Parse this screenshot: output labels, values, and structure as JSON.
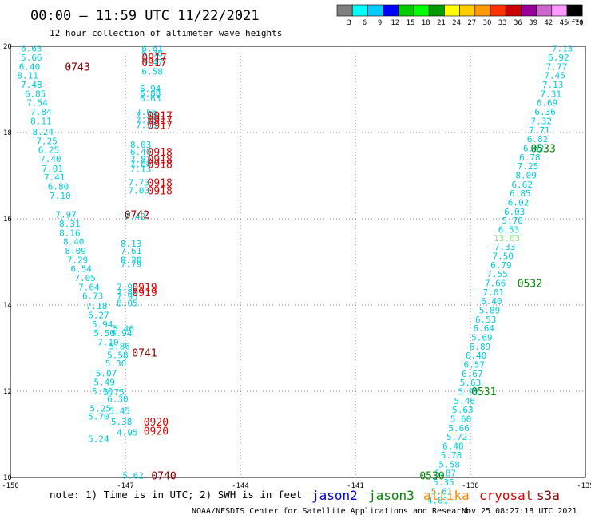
{
  "header": {
    "title": "00:00 – 11:59 UTC 11/22/2021",
    "subtitle": "12 hour collection of altimeter wave heights",
    "note": "note: 1) Time is in UTC; 2) SWH is in feet",
    "credit": "NOAA/NESDIS Center for Satellite Applications and Research",
    "timestamp": "Nov 25 08:27:18 UTC 2021"
  },
  "legend": {
    "colors": [
      "#808080",
      "#00ffff",
      "#00ccff",
      "#0000ff",
      "#00cc00",
      "#00ff00",
      "#009900",
      "#ffff00",
      "#ffcc00",
      "#ff9900",
      "#ff3300",
      "#cc0000",
      "#990099",
      "#cc66cc",
      "#ff99ff",
      "#000000"
    ],
    "labels": [
      "3",
      "6",
      "9",
      "12",
      "15",
      "18",
      "21",
      "24",
      "27",
      "30",
      "33",
      "36",
      "39",
      "42",
      "45",
      "70"
    ],
    "unit": "(ft)"
  },
  "missions": [
    {
      "name": "jason2",
      "color": "#0000dd"
    },
    {
      "name": "jason3",
      "color": "#008800"
    },
    {
      "name": "altika",
      "color": "#ff8800"
    },
    {
      "name": "cryosat",
      "color": "#dd0000"
    },
    {
      "name": "s3a",
      "color": "#880000"
    }
  ],
  "chart_data": {
    "type": "scatter",
    "title": "00:00 – 11:59 UTC 11/22/2021",
    "xlim": [
      -150,
      -135
    ],
    "ylim": [
      10,
      20
    ],
    "xticks": [
      "-150",
      "-147",
      "-144",
      "-141",
      "-138",
      "-135"
    ],
    "yticks": [
      "10",
      "12",
      "14",
      "16",
      "18",
      "20"
    ],
    "colors": {
      "swh": "#00ccdd",
      "swh_light": "#88ee88",
      "swh_yellow": "#ffff00",
      "jason3": "#008800",
      "cryosat": "#dd0000",
      "s3a": "#880000"
    },
    "points": [
      {
        "x": -149.45,
        "y": 19.95,
        "v": "6.63"
      },
      {
        "x": -149.45,
        "y": 19.74,
        "v": "5.66"
      },
      {
        "x": -149.5,
        "y": 19.53,
        "v": "6.40"
      },
      {
        "x": -149.55,
        "y": 19.32,
        "v": "8.11"
      },
      {
        "x": -149.45,
        "y": 19.11,
        "v": "7.48"
      },
      {
        "x": -149.35,
        "y": 18.9,
        "v": "6.85"
      },
      {
        "x": -149.3,
        "y": 18.69,
        "v": "7.54"
      },
      {
        "x": -149.2,
        "y": 18.48,
        "v": "7.84"
      },
      {
        "x": -149.2,
        "y": 18.27,
        "v": "8.11"
      },
      {
        "x": -149.15,
        "y": 18.02,
        "v": "8.24"
      },
      {
        "x": -149.05,
        "y": 17.81,
        "v": "7.25"
      },
      {
        "x": -149.0,
        "y": 17.6,
        "v": "6.25"
      },
      {
        "x": -148.95,
        "y": 17.39,
        "v": "7.40"
      },
      {
        "x": -148.9,
        "y": 17.17,
        "v": "7.01"
      },
      {
        "x": -148.85,
        "y": 16.96,
        "v": "7.41"
      },
      {
        "x": -148.75,
        "y": 16.75,
        "v": "6.80"
      },
      {
        "x": -148.7,
        "y": 16.54,
        "v": "7.10"
      },
      {
        "x": -148.55,
        "y": 16.1,
        "v": "7.97"
      },
      {
        "x": -148.45,
        "y": 15.89,
        "v": "8.31"
      },
      {
        "x": -148.45,
        "y": 15.68,
        "v": "8.16"
      },
      {
        "x": -148.35,
        "y": 15.47,
        "v": "8.40"
      },
      {
        "x": -148.3,
        "y": 15.26,
        "v": "8.09"
      },
      {
        "x": -148.25,
        "y": 15.05,
        "v": "7.29"
      },
      {
        "x": -148.15,
        "y": 14.84,
        "v": "6.54"
      },
      {
        "x": -148.05,
        "y": 14.63,
        "v": "7.05"
      },
      {
        "x": -147.95,
        "y": 14.42,
        "v": "7.64"
      },
      {
        "x": -147.85,
        "y": 14.21,
        "v": "6.73"
      },
      {
        "x": -147.75,
        "y": 13.98,
        "v": "7.18"
      },
      {
        "x": -147.7,
        "y": 13.77,
        "v": "6.27"
      },
      {
        "x": -147.6,
        "y": 13.56,
        "v": "5.94"
      },
      {
        "x": -147.55,
        "y": 13.35,
        "v": "5.50"
      },
      {
        "x": -147.45,
        "y": 13.14,
        "v": "7.10"
      },
      {
        "x": -147.5,
        "y": 12.42,
        "v": "5.07"
      },
      {
        "x": -147.55,
        "y": 12.21,
        "v": "5.49"
      },
      {
        "x": -147.6,
        "y": 12.0,
        "v": "5.10"
      },
      {
        "x": -147.65,
        "y": 11.6,
        "v": "5.25"
      },
      {
        "x": -147.7,
        "y": 11.42,
        "v": "5.70"
      },
      {
        "x": -147.7,
        "y": 10.9,
        "v": "5.24"
      },
      {
        "x": -146.3,
        "y": 19.95,
        "v": "6.61"
      },
      {
        "x": -146.3,
        "y": 19.84,
        "v": "6.38"
      },
      {
        "x": -146.3,
        "y": 19.63,
        "v": "6.47"
      },
      {
        "x": -146.3,
        "y": 19.42,
        "v": "6.58"
      },
      {
        "x": -146.35,
        "y": 19.02,
        "v": "6.94"
      },
      {
        "x": -146.35,
        "y": 18.91,
        "v": "6.88"
      },
      {
        "x": -146.35,
        "y": 18.8,
        "v": "6.63"
      },
      {
        "x": -146.45,
        "y": 18.48,
        "v": "7.66"
      },
      {
        "x": -146.45,
        "y": 18.4,
        "v": "7.59"
      },
      {
        "x": -146.45,
        "y": 18.3,
        "v": "7.78"
      },
      {
        "x": -146.45,
        "y": 18.18,
        "v": "7.55"
      },
      {
        "x": -146.6,
        "y": 17.72,
        "v": "8.03"
      },
      {
        "x": -146.6,
        "y": 17.56,
        "v": "6.40"
      },
      {
        "x": -146.6,
        "y": 17.38,
        "v": "7.82"
      },
      {
        "x": -146.6,
        "y": 17.27,
        "v": "7.84"
      },
      {
        "x": -146.6,
        "y": 17.16,
        "v": "7.13"
      },
      {
        "x": -146.65,
        "y": 16.84,
        "v": "7.73"
      },
      {
        "x": -146.65,
        "y": 16.66,
        "v": "7.03"
      },
      {
        "x": -146.75,
        "y": 16.06,
        "v": "7.42"
      },
      {
        "x": -146.85,
        "y": 15.43,
        "v": "8.13"
      },
      {
        "x": -146.85,
        "y": 15.26,
        "v": "7.61"
      },
      {
        "x": -146.85,
        "y": 15.05,
        "v": "8.20"
      },
      {
        "x": -146.85,
        "y": 14.95,
        "v": "7.79"
      },
      {
        "x": -146.95,
        "y": 14.42,
        "v": "7.98"
      },
      {
        "x": -146.95,
        "y": 14.3,
        "v": "7.89"
      },
      {
        "x": -146.95,
        "y": 14.2,
        "v": "7.95"
      },
      {
        "x": -146.95,
        "y": 14.05,
        "v": "8.05"
      },
      {
        "x": -147.05,
        "y": 13.45,
        "v": "5.46"
      },
      {
        "x": -147.1,
        "y": 13.35,
        "v": "5.94"
      },
      {
        "x": -147.15,
        "y": 13.05,
        "v": "5.86"
      },
      {
        "x": -147.2,
        "y": 12.84,
        "v": "5.58"
      },
      {
        "x": -147.25,
        "y": 12.65,
        "v": "5.30"
      },
      {
        "x": -147.3,
        "y": 11.98,
        "v": "5.75"
      },
      {
        "x": -147.2,
        "y": 11.82,
        "v": "6.30"
      },
      {
        "x": -147.15,
        "y": 11.55,
        "v": "5.45"
      },
      {
        "x": -147.1,
        "y": 11.3,
        "v": "5.38"
      },
      {
        "x": -146.95,
        "y": 11.05,
        "v": "4.95"
      },
      {
        "x": -146.8,
        "y": 10.05,
        "v": "5.62"
      },
      {
        "x": -135.6,
        "y": 19.95,
        "v": "7.13"
      },
      {
        "x": -135.7,
        "y": 19.74,
        "v": "6.92"
      },
      {
        "x": -135.75,
        "y": 19.53,
        "v": "7.77"
      },
      {
        "x": -135.8,
        "y": 19.32,
        "v": "7.45"
      },
      {
        "x": -135.85,
        "y": 19.11,
        "v": "7.13"
      },
      {
        "x": -135.9,
        "y": 18.9,
        "v": "7.31"
      },
      {
        "x": -136.0,
        "y": 18.69,
        "v": "6.69"
      },
      {
        "x": -136.05,
        "y": 18.48,
        "v": "6.36"
      },
      {
        "x": -136.15,
        "y": 18.27,
        "v": "7.32"
      },
      {
        "x": -136.2,
        "y": 18.06,
        "v": "7.71"
      },
      {
        "x": -136.25,
        "y": 17.85,
        "v": "6.82"
      },
      {
        "x": -136.35,
        "y": 17.64,
        "v": "6.62"
      },
      {
        "x": -136.45,
        "y": 17.43,
        "v": "6.78"
      },
      {
        "x": -136.5,
        "y": 17.22,
        "v": "7.25"
      },
      {
        "x": -136.55,
        "y": 17.01,
        "v": "8.09"
      },
      {
        "x": -136.65,
        "y": 16.8,
        "v": "6.62"
      },
      {
        "x": -136.7,
        "y": 16.59,
        "v": "6.85"
      },
      {
        "x": -136.75,
        "y": 16.38,
        "v": "6.02"
      },
      {
        "x": -136.85,
        "y": 16.17,
        "v": "6.03"
      },
      {
        "x": -136.9,
        "y": 15.96,
        "v": "5.70"
      },
      {
        "x": -137.0,
        "y": 15.75,
        "v": "6.53"
      },
      {
        "x": -137.05,
        "y": 15.56,
        "v": "13.03"
      },
      {
        "x": -137.1,
        "y": 15.35,
        "v": "7.33"
      },
      {
        "x": -137.15,
        "y": 15.14,
        "v": "7.50"
      },
      {
        "x": -137.2,
        "y": 14.93,
        "v": "6.79"
      },
      {
        "x": -137.3,
        "y": 14.72,
        "v": "7.55"
      },
      {
        "x": -137.35,
        "y": 14.51,
        "v": "7.66"
      },
      {
        "x": -137.4,
        "y": 14.3,
        "v": "7.01"
      },
      {
        "x": -137.45,
        "y": 14.09,
        "v": "6.40"
      },
      {
        "x": -137.5,
        "y": 13.88,
        "v": "5.89"
      },
      {
        "x": -137.6,
        "y": 13.67,
        "v": "6.53"
      },
      {
        "x": -137.65,
        "y": 13.46,
        "v": "6.64"
      },
      {
        "x": -137.7,
        "y": 13.25,
        "v": "5.69"
      },
      {
        "x": -137.75,
        "y": 13.04,
        "v": "6.89"
      },
      {
        "x": -137.85,
        "y": 12.83,
        "v": "6.40"
      },
      {
        "x": -137.9,
        "y": 12.62,
        "v": "6.57"
      },
      {
        "x": -137.95,
        "y": 12.41,
        "v": "6.67"
      },
      {
        "x": -138.0,
        "y": 12.2,
        "v": "5.63"
      },
      {
        "x": -138.05,
        "y": 11.99,
        "v": "5.95"
      },
      {
        "x": -138.15,
        "y": 11.78,
        "v": "5.46"
      },
      {
        "x": -138.2,
        "y": 11.57,
        "v": "5.63"
      },
      {
        "x": -138.25,
        "y": 11.36,
        "v": "5.60"
      },
      {
        "x": -138.3,
        "y": 11.15,
        "v": "5.66"
      },
      {
        "x": -138.35,
        "y": 10.94,
        "v": "5.72"
      },
      {
        "x": -138.45,
        "y": 10.73,
        "v": "6.48"
      },
      {
        "x": -138.5,
        "y": 10.52,
        "v": "5.78"
      },
      {
        "x": -138.55,
        "y": 10.31,
        "v": "5.58"
      },
      {
        "x": -138.65,
        "y": 10.1,
        "v": "5.87"
      },
      {
        "x": -138.7,
        "y": 9.89,
        "v": "5.35"
      },
      {
        "x": -138.75,
        "y": 9.68,
        "v": "5.61"
      },
      {
        "x": -138.85,
        "y": 9.47,
        "v": "4.81"
      }
    ],
    "times": [
      {
        "x": -148.25,
        "y": 19.53,
        "v": "0743",
        "mission": "s3a"
      },
      {
        "x": -146.25,
        "y": 19.74,
        "v": "0917",
        "mission": "cryosat"
      },
      {
        "x": -146.25,
        "y": 19.63,
        "v": "0917",
        "mission": "cryosat"
      },
      {
        "x": -146.1,
        "y": 18.4,
        "v": "0917",
        "mission": "cryosat"
      },
      {
        "x": -146.1,
        "y": 18.3,
        "v": "0917",
        "mission": "cryosat"
      },
      {
        "x": -146.1,
        "y": 18.18,
        "v": "0917",
        "mission": "cryosat"
      },
      {
        "x": -146.1,
        "y": 17.56,
        "v": "0918",
        "mission": "cryosat"
      },
      {
        "x": -146.1,
        "y": 17.38,
        "v": "0918",
        "mission": "cryosat"
      },
      {
        "x": -146.1,
        "y": 17.27,
        "v": "0918",
        "mission": "cryosat"
      },
      {
        "x": -146.1,
        "y": 16.84,
        "v": "0918",
        "mission": "cryosat"
      },
      {
        "x": -146.1,
        "y": 16.66,
        "v": "0918",
        "mission": "cryosat"
      },
      {
        "x": -146.7,
        "y": 16.1,
        "v": "0742",
        "mission": "s3a"
      },
      {
        "x": -146.5,
        "y": 14.42,
        "v": "0919",
        "mission": "cryosat"
      },
      {
        "x": -146.5,
        "y": 14.3,
        "v": "0919",
        "mission": "cryosat"
      },
      {
        "x": -146.5,
        "y": 12.9,
        "v": "0741",
        "mission": "s3a"
      },
      {
        "x": -146.2,
        "y": 11.3,
        "v": "0920",
        "mission": "cryosat"
      },
      {
        "x": -146.2,
        "y": 11.08,
        "v": "0920",
        "mission": "cryosat"
      },
      {
        "x": -146.0,
        "y": 10.05,
        "v": "0740",
        "mission": "s3a"
      },
      {
        "x": -136.1,
        "y": 17.64,
        "v": "0533",
        "mission": "jason3"
      },
      {
        "x": -136.45,
        "y": 14.51,
        "v": "0532",
        "mission": "jason3"
      },
      {
        "x": -137.65,
        "y": 12.0,
        "v": "0531",
        "mission": "jason3"
      },
      {
        "x": -139.0,
        "y": 10.05,
        "v": "0530",
        "mission": "jason3"
      }
    ]
  }
}
